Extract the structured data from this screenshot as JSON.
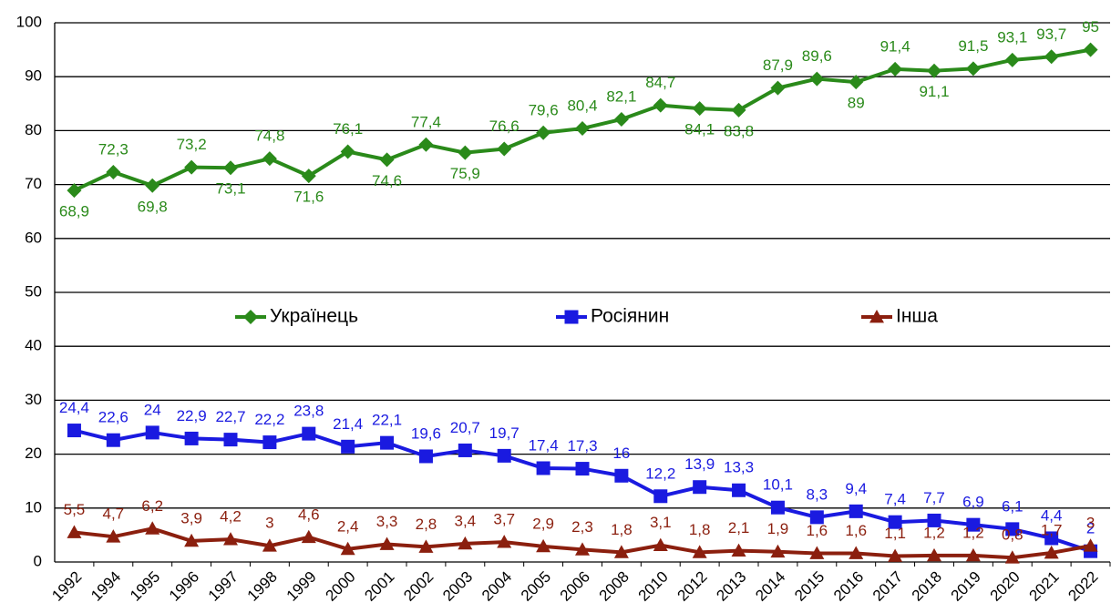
{
  "chart_data": {
    "type": "line",
    "categories": [
      "1992",
      "1994",
      "1995",
      "1996",
      "1997",
      "1998",
      "1999",
      "2000",
      "2001",
      "2002",
      "2003",
      "2004",
      "2005",
      "2006",
      "2008",
      "2010",
      "2012",
      "2013",
      "2014",
      "2015",
      "2016",
      "2017",
      "2018",
      "2019",
      "2020",
      "2021",
      "2022"
    ],
    "series": [
      {
        "name": "Українець",
        "color": "#2a8a1a",
        "marker": "diamond",
        "values": [
          68.9,
          72.3,
          69.8,
          73.2,
          73.1,
          74.8,
          71.6,
          76.1,
          74.6,
          77.4,
          75.9,
          76.6,
          79.6,
          80.4,
          82.1,
          84.7,
          84.1,
          83.8,
          87.9,
          89.6,
          89,
          91.4,
          91.1,
          91.5,
          93.1,
          93.7,
          95
        ],
        "value_labels": [
          "68,9",
          "72,3",
          "69,8",
          "73,2",
          "73,1",
          "74,8",
          "71,6",
          "76,1",
          "74,6",
          "77,4",
          "75,9",
          "76,6",
          "79,6",
          "80,4",
          "82,1",
          "84,7",
          "84,1",
          "83,8",
          "87,9",
          "89,6",
          "89",
          "91,4",
          "91,1",
          "91,5",
          "93,1",
          "93,7",
          "95"
        ]
      },
      {
        "name": "Росіянин",
        "color": "#1a1ae0",
        "marker": "square",
        "values": [
          24.4,
          22.6,
          24,
          22.9,
          22.7,
          22.2,
          23.8,
          21.4,
          22.1,
          19.6,
          20.7,
          19.7,
          17.4,
          17.3,
          16,
          12.2,
          13.9,
          13.3,
          10.1,
          8.3,
          9.4,
          7.4,
          7.7,
          6.9,
          6.1,
          4.4,
          2
        ],
        "value_labels": [
          "24,4",
          "22,6",
          "24",
          "22,9",
          "22,7",
          "22,2",
          "23,8",
          "21,4",
          "22,1",
          "19,6",
          "20,7",
          "19,7",
          "17,4",
          "17,3",
          "16",
          "12,2",
          "13,9",
          "13,3",
          "10,1",
          "8,3",
          "9,4",
          "7,4",
          "7,7",
          "6,9",
          "6,1",
          "4,4",
          "2"
        ]
      },
      {
        "name": "Інша",
        "color": "#8b1f0e",
        "marker": "triangle",
        "values": [
          5.5,
          4.7,
          6.2,
          3.9,
          4.2,
          3,
          4.6,
          2.4,
          3.3,
          2.8,
          3.4,
          3.7,
          2.9,
          2.3,
          1.8,
          3.1,
          1.8,
          2.1,
          1.9,
          1.6,
          1.6,
          1.1,
          1.2,
          1.2,
          0.8,
          1.7,
          3
        ],
        "value_labels": [
          "5,5",
          "4,7",
          "6,2",
          "3,9",
          "4,2",
          "3",
          "4,6",
          "2,4",
          "3,3",
          "2,8",
          "3,4",
          "3,7",
          "2,9",
          "2,3",
          "1,8",
          "3,1",
          "1,8",
          "2,1",
          "1,9",
          "1,6",
          "1,6",
          "1,1",
          "1,2",
          "1,2",
          "0,8",
          "1,7",
          "3"
        ]
      }
    ],
    "ylim": [
      0,
      100
    ],
    "yticks": [
      0,
      10,
      20,
      30,
      40,
      50,
      60,
      70,
      80,
      90,
      100
    ],
    "grid": true,
    "legend": "center"
  }
}
